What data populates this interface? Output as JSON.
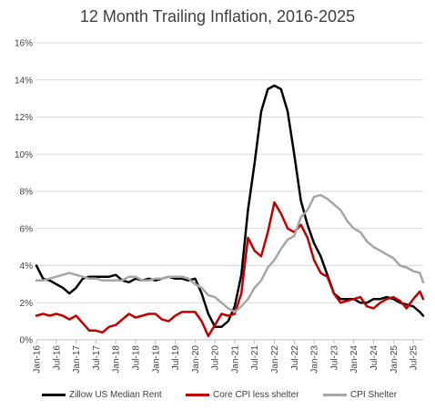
{
  "chart_data": {
    "type": "line",
    "title": "12 Month Trailing Inflation, 2016-2025",
    "y_tick_labels": [
      "0%",
      "2%",
      "4%",
      "6%",
      "8%",
      "10%",
      "12%",
      "14%",
      "16%"
    ],
    "ylim": [
      0,
      16
    ],
    "x_tick_labels": [
      "Jan-16",
      "Jul-16",
      "Jan-17",
      "Jul-17",
      "Jan-18",
      "Jul-18",
      "Jan-19",
      "Jul-19",
      "Jan-20",
      "Jul-20",
      "Jan-21",
      "Jul-21",
      "Jan-22",
      "Jul-22",
      "Jan-23",
      "Jul-23",
      "Jan-24",
      "Jul-24",
      "Jan-25",
      "Jul-25"
    ],
    "x_start": "Jan-16",
    "x_end": "Oct-25",
    "grid": true,
    "legend_position": "bottom",
    "series": [
      {
        "name": "Zillow US Median Rent",
        "color": "#000000",
        "points": [
          [
            "Jan-16",
            4.0
          ],
          [
            "Mar-16",
            3.3
          ],
          [
            "May-16",
            3.2
          ],
          [
            "Jul-16",
            3.0
          ],
          [
            "Sep-16",
            2.8
          ],
          [
            "Nov-16",
            2.5
          ],
          [
            "Jan-17",
            2.8
          ],
          [
            "Mar-17",
            3.3
          ],
          [
            "May-17",
            3.4
          ],
          [
            "Jul-17",
            3.4
          ],
          [
            "Sep-17",
            3.4
          ],
          [
            "Nov-17",
            3.4
          ],
          [
            "Jan-18",
            3.5
          ],
          [
            "Mar-18",
            3.2
          ],
          [
            "May-18",
            3.1
          ],
          [
            "Jul-18",
            3.3
          ],
          [
            "Sep-18",
            3.2
          ],
          [
            "Nov-18",
            3.3
          ],
          [
            "Jan-19",
            3.2
          ],
          [
            "Mar-19",
            3.3
          ],
          [
            "May-19",
            3.4
          ],
          [
            "Jul-19",
            3.3
          ],
          [
            "Sep-19",
            3.3
          ],
          [
            "Nov-19",
            3.2
          ],
          [
            "Jan-20",
            3.3
          ],
          [
            "Mar-20",
            2.5
          ],
          [
            "May-20",
            1.4
          ],
          [
            "Jul-20",
            0.7
          ],
          [
            "Sep-20",
            0.7
          ],
          [
            "Nov-20",
            1.0
          ],
          [
            "Jan-21",
            1.8
          ],
          [
            "Mar-21",
            3.5
          ],
          [
            "May-21",
            7.0
          ],
          [
            "Jul-21",
            9.5
          ],
          [
            "Sep-21",
            12.3
          ],
          [
            "Nov-21",
            13.5
          ],
          [
            "Jan-22",
            13.7
          ],
          [
            "Mar-22",
            13.5
          ],
          [
            "May-22",
            12.3
          ],
          [
            "Jul-22",
            10.0
          ],
          [
            "Sep-22",
            7.5
          ],
          [
            "Nov-22",
            6.2
          ],
          [
            "Jan-23",
            5.2
          ],
          [
            "Mar-23",
            4.5
          ],
          [
            "May-23",
            3.5
          ],
          [
            "Jul-23",
            2.5
          ],
          [
            "Sep-23",
            2.2
          ],
          [
            "Nov-23",
            2.2
          ],
          [
            "Jan-24",
            2.2
          ],
          [
            "Mar-24",
            2.0
          ],
          [
            "May-24",
            2.0
          ],
          [
            "Jul-24",
            2.2
          ],
          [
            "Sep-24",
            2.2
          ],
          [
            "Nov-24",
            2.3
          ],
          [
            "Jan-25",
            2.2
          ],
          [
            "Mar-25",
            2.0
          ],
          [
            "May-25",
            1.9
          ],
          [
            "Jul-25",
            1.8
          ],
          [
            "Sep-25",
            1.5
          ],
          [
            "Oct-25",
            1.3
          ]
        ]
      },
      {
        "name": "Core CPI less shelter",
        "color": "#c00000",
        "points": [
          [
            "Jan-16",
            1.3
          ],
          [
            "Mar-16",
            1.4
          ],
          [
            "May-16",
            1.3
          ],
          [
            "Jul-16",
            1.4
          ],
          [
            "Sep-16",
            1.3
          ],
          [
            "Nov-16",
            1.1
          ],
          [
            "Jan-17",
            1.3
          ],
          [
            "Mar-17",
            0.9
          ],
          [
            "May-17",
            0.5
          ],
          [
            "Jul-17",
            0.5
          ],
          [
            "Sep-17",
            0.4
          ],
          [
            "Nov-17",
            0.7
          ],
          [
            "Jan-18",
            0.8
          ],
          [
            "Mar-18",
            1.1
          ],
          [
            "May-18",
            1.4
          ],
          [
            "Jul-18",
            1.2
          ],
          [
            "Sep-18",
            1.3
          ],
          [
            "Nov-18",
            1.4
          ],
          [
            "Jan-19",
            1.4
          ],
          [
            "Mar-19",
            1.1
          ],
          [
            "May-19",
            1.0
          ],
          [
            "Jul-19",
            1.3
          ],
          [
            "Sep-19",
            1.5
          ],
          [
            "Nov-19",
            1.5
          ],
          [
            "Jan-20",
            1.5
          ],
          [
            "Mar-20",
            1.0
          ],
          [
            "May-20",
            0.2
          ],
          [
            "Jul-20",
            0.8
          ],
          [
            "Sep-20",
            1.4
          ],
          [
            "Nov-20",
            1.3
          ],
          [
            "Jan-21",
            1.4
          ],
          [
            "Mar-21",
            2.5
          ],
          [
            "May-21",
            5.5
          ],
          [
            "Jul-21",
            4.8
          ],
          [
            "Sep-21",
            4.5
          ],
          [
            "Nov-21",
            5.8
          ],
          [
            "Jan-22",
            7.4
          ],
          [
            "Mar-22",
            6.8
          ],
          [
            "May-22",
            6.0
          ],
          [
            "Jul-22",
            5.8
          ],
          [
            "Sep-22",
            6.2
          ],
          [
            "Nov-22",
            5.5
          ],
          [
            "Jan-23",
            4.3
          ],
          [
            "Mar-23",
            3.6
          ],
          [
            "May-23",
            3.4
          ],
          [
            "Jul-23",
            2.5
          ],
          [
            "Sep-23",
            2.0
          ],
          [
            "Nov-23",
            2.1
          ],
          [
            "Jan-24",
            2.2
          ],
          [
            "Mar-24",
            2.3
          ],
          [
            "May-24",
            1.8
          ],
          [
            "Jul-24",
            1.7
          ],
          [
            "Sep-24",
            2.0
          ],
          [
            "Nov-24",
            2.2
          ],
          [
            "Jan-25",
            2.3
          ],
          [
            "Mar-25",
            2.1
          ],
          [
            "May-25",
            1.7
          ],
          [
            "Jul-25",
            2.2
          ],
          [
            "Sep-25",
            2.6
          ],
          [
            "Oct-25",
            2.2
          ]
        ]
      },
      {
        "name": "CPI Shelter",
        "color": "#a6a6a6",
        "points": [
          [
            "Jan-16",
            3.2
          ],
          [
            "Mar-16",
            3.2
          ],
          [
            "May-16",
            3.3
          ],
          [
            "Jul-16",
            3.4
          ],
          [
            "Sep-16",
            3.5
          ],
          [
            "Nov-16",
            3.6
          ],
          [
            "Jan-17",
            3.5
          ],
          [
            "Mar-17",
            3.4
          ],
          [
            "May-17",
            3.3
          ],
          [
            "Jul-17",
            3.3
          ],
          [
            "Sep-17",
            3.2
          ],
          [
            "Nov-17",
            3.2
          ],
          [
            "Jan-18",
            3.2
          ],
          [
            "Mar-18",
            3.2
          ],
          [
            "May-18",
            3.4
          ],
          [
            "Jul-18",
            3.4
          ],
          [
            "Sep-18",
            3.2
          ],
          [
            "Nov-18",
            3.2
          ],
          [
            "Jan-19",
            3.3
          ],
          [
            "Mar-19",
            3.3
          ],
          [
            "May-19",
            3.4
          ],
          [
            "Jul-19",
            3.4
          ],
          [
            "Sep-19",
            3.4
          ],
          [
            "Nov-19",
            3.3
          ],
          [
            "Jan-20",
            3.0
          ],
          [
            "Mar-20",
            2.8
          ],
          [
            "May-20",
            2.4
          ],
          [
            "Jul-20",
            2.3
          ],
          [
            "Sep-20",
            2.0
          ],
          [
            "Nov-20",
            1.7
          ],
          [
            "Jan-21",
            1.5
          ],
          [
            "Mar-21",
            1.8
          ],
          [
            "May-21",
            2.2
          ],
          [
            "Jul-21",
            2.8
          ],
          [
            "Sep-21",
            3.2
          ],
          [
            "Nov-21",
            3.9
          ],
          [
            "Jan-22",
            4.3
          ],
          [
            "Mar-22",
            4.9
          ],
          [
            "May-22",
            5.4
          ],
          [
            "Jul-22",
            5.6
          ],
          [
            "Sep-22",
            6.6
          ],
          [
            "Nov-22",
            7.0
          ],
          [
            "Jan-23",
            7.7
          ],
          [
            "Mar-23",
            7.8
          ],
          [
            "May-23",
            7.6
          ],
          [
            "Jul-23",
            7.3
          ],
          [
            "Sep-23",
            7.0
          ],
          [
            "Nov-23",
            6.4
          ],
          [
            "Jan-24",
            6.0
          ],
          [
            "Mar-24",
            5.8
          ],
          [
            "May-24",
            5.3
          ],
          [
            "Jul-24",
            5.0
          ],
          [
            "Sep-24",
            4.8
          ],
          [
            "Nov-24",
            4.6
          ],
          [
            "Jan-25",
            4.4
          ],
          [
            "Mar-25",
            4.0
          ],
          [
            "May-25",
            3.9
          ],
          [
            "Jul-25",
            3.7
          ],
          [
            "Sep-25",
            3.6
          ],
          [
            "Oct-25",
            3.1
          ]
        ]
      }
    ]
  }
}
